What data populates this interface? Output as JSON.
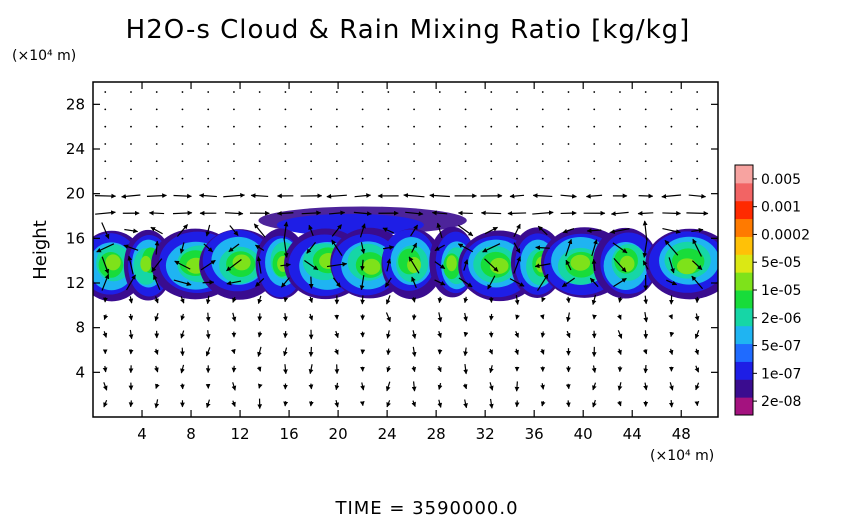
{
  "chart_data": {
    "type": "heatmap",
    "title": "H2O-s Cloud & Rain Mixing Ratio [kg/kg]",
    "xlabel": "",
    "ylabel": "Height",
    "x_unit": "(×10⁴ m)",
    "y_unit": "(×10⁴ m)",
    "xlim": [
      0,
      51
    ],
    "ylim": [
      0,
      30
    ],
    "x_ticks": [
      "4",
      "8",
      "12",
      "16",
      "20",
      "24",
      "28",
      "32",
      "36",
      "40",
      "44",
      "48"
    ],
    "y_ticks": [
      "4",
      "8",
      "12",
      "16",
      "20",
      "24",
      "28"
    ],
    "colorbar": {
      "labels": [
        "0.005",
        "0.001",
        "0.0002",
        "5e-05",
        "1e-05",
        "2e-06",
        "5e-07",
        "1e-07",
        "2e-08"
      ],
      "colors": [
        "#a4127f",
        "#3a0c8f",
        "#1e1ee6",
        "#1f6bff",
        "#1fb4f2",
        "#16d6a6",
        "#18dc3a",
        "#7ee21a",
        "#dbe814",
        "#ffc107",
        "#ff7a00",
        "#ff2a00",
        "#f26464",
        "#f7a3a0"
      ]
    },
    "cloud_layer": {
      "base_height": 11,
      "top_height": 16.5,
      "anvil_top": 19,
      "anvil_x_range": [
        14,
        32
      ]
    },
    "wind_vectors": "grid of black arrows",
    "footer": "TIME  =  3590000.0"
  }
}
